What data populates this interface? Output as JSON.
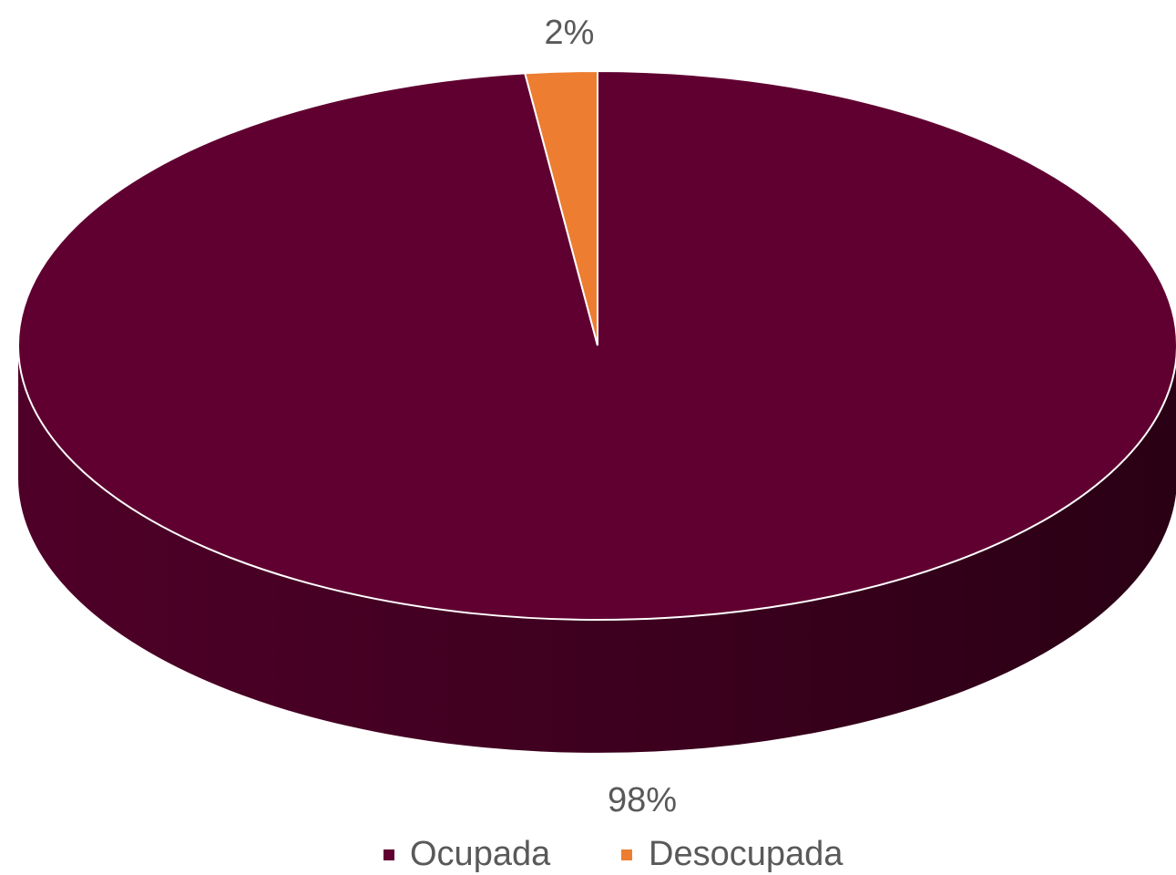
{
  "chart_data": {
    "type": "pie",
    "categories": [
      "Ocupada",
      "Desocupada"
    ],
    "values": [
      98,
      2
    ],
    "value_labels": [
      "98%",
      "2%"
    ],
    "colors": [
      "#600030",
      "#ed7d31"
    ],
    "legend": "bottom"
  }
}
